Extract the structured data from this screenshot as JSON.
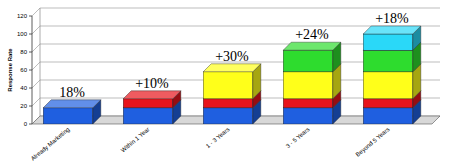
{
  "chart_data": {
    "type": "bar",
    "stacked": true,
    "data_labels": true,
    "grid": true,
    "y_label": "Response Rate",
    "categories": [
      "Already Marketing",
      "Within 1 Year",
      "1 - 3 Years",
      "3 - 5 Years",
      "Beyond 5 Years"
    ],
    "ylim": [
      0,
      120
    ],
    "yticks": [
      0,
      20,
      40,
      60,
      80,
      100,
      120
    ],
    "series": [
      {
        "color": "#1f5fe0",
        "values": [
          18,
          18,
          18,
          18,
          18
        ],
        "value_labels": [
          "18%",
          null,
          null,
          null,
          null
        ]
      },
      {
        "color": "#e8141c",
        "values": [
          null,
          10,
          10,
          10,
          10
        ],
        "value_labels": [
          null,
          "+10%",
          null,
          null,
          null
        ]
      },
      {
        "color": "#ffff1a",
        "values": [
          null,
          null,
          30,
          30,
          30
        ],
        "value_labels": [
          null,
          null,
          "+30%",
          null,
          null
        ]
      },
      {
        "color": "#2edc2e",
        "values": [
          null,
          null,
          null,
          24,
          24
        ],
        "value_labels": [
          null,
          null,
          null,
          "+24%",
          null
        ]
      },
      {
        "color": "#2ad8f8",
        "values": [
          null,
          null,
          null,
          null,
          18
        ],
        "value_labels": [
          null,
          null,
          null,
          null,
          "+18%"
        ]
      }
    ]
  }
}
